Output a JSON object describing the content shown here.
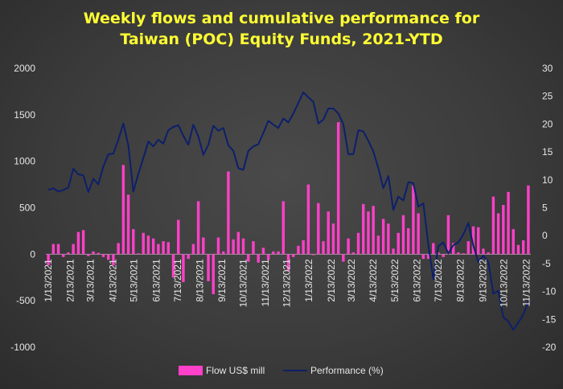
{
  "chart_data": {
    "type": "bar+line",
    "title_line1": "Weekly flows and cumulative performance for",
    "title_line2": "Taiwan (POC) Equity Funds, 2021-YTD",
    "y_left_range": [
      -1000,
      2000
    ],
    "y_left_ticks": [
      "2000",
      "1500",
      "1000",
      "500",
      "0",
      "-500",
      "-1000"
    ],
    "y_right_range": [
      -20,
      30
    ],
    "y_right_ticks": [
      "30",
      "25",
      "20",
      "15",
      "10",
      "5",
      "0",
      "-5",
      "-10",
      "-15",
      "-20"
    ],
    "x_ticks": [
      {
        "label": "1/13/2021",
        "week": 0
      },
      {
        "label": "2/13/2021",
        "week": 4.4
      },
      {
        "label": "3/13/2021",
        "week": 8.4
      },
      {
        "label": "4/13/2021",
        "week": 12.9
      },
      {
        "label": "5/13/2021",
        "week": 17.1
      },
      {
        "label": "6/13/2021",
        "week": 21.6
      },
      {
        "label": "7/13/2021",
        "week": 25.9
      },
      {
        "label": "8/13/2021",
        "week": 30.3
      },
      {
        "label": "9/13/2021",
        "week": 34.7
      },
      {
        "label": "10/13/2021",
        "week": 39
      },
      {
        "label": "11/13/2021",
        "week": 43.4
      },
      {
        "label": "12/13/2021",
        "week": 47.7
      },
      {
        "label": "1/13/2022",
        "week": 52.1
      },
      {
        "label": "2/13/2022",
        "week": 56.6
      },
      {
        "label": "3/13/2022",
        "week": 60.6
      },
      {
        "label": "4/13/2022",
        "week": 65
      },
      {
        "label": "5/13/2022",
        "week": 69.3
      },
      {
        "label": "6/13/2022",
        "week": 73.7
      },
      {
        "label": "7/13/2022",
        "week": 78
      },
      {
        "label": "8/13/2022",
        "week": 82.4
      },
      {
        "label": "9/13/2022",
        "week": 86.9
      },
      {
        "label": "10/13/2022",
        "week": 91.1
      },
      {
        "label": "11/13/2022",
        "week": 95.6
      }
    ],
    "grid": false,
    "legend_position": "bottom",
    "series": [
      {
        "name": "Flow US$ mill",
        "type": "bar",
        "axis": "left",
        "color": "#ff40c8",
        "values": [
          -120,
          110,
          110,
          -30,
          20,
          110,
          240,
          260,
          -20,
          30,
          15,
          -30,
          -60,
          -120,
          120,
          960,
          640,
          270,
          10,
          230,
          200,
          170,
          110,
          140,
          130,
          -250,
          370,
          -300,
          -50,
          110,
          570,
          180,
          -290,
          -430,
          180,
          30,
          890,
          160,
          240,
          170,
          -80,
          140,
          -90,
          70,
          -60,
          30,
          30,
          570,
          -180,
          -30,
          90,
          150,
          750,
          -10,
          550,
          140,
          460,
          330,
          1420,
          -80,
          170,
          20,
          230,
          540,
          460,
          520,
          200,
          380,
          330,
          60,
          230,
          420,
          280,
          740,
          440,
          -50,
          -50,
          120,
          20,
          -30,
          420,
          120,
          20,
          10,
          140,
          300,
          290,
          60,
          20,
          620,
          440,
          530,
          670,
          270,
          100,
          150,
          740
        ]
      },
      {
        "name": "Performance (%)",
        "type": "line",
        "axis": "right",
        "color": "#0d1f6b",
        "values": [
          8.2,
          8.5,
          7.9,
          8.2,
          8.6,
          12,
          11,
          10.8,
          7.8,
          10.2,
          9.2,
          12.4,
          14.6,
          14.7,
          17.2,
          20.1,
          16.2,
          7.9,
          11.1,
          13.9,
          16.9,
          16,
          17.2,
          16.5,
          18.9,
          19.5,
          19.8,
          17.9,
          16.3,
          19.9,
          17.8,
          14.5,
          16.3,
          19.7,
          18.8,
          19.3,
          16.2,
          15.2,
          12.1,
          11.8,
          15.2,
          16,
          16.4,
          18.4,
          20.6,
          19.9,
          19.3,
          21,
          20.3,
          21.9,
          23.8,
          25.7,
          24.8,
          24,
          20.1,
          20.8,
          22.8,
          22.8,
          21.9,
          20,
          14.6,
          14.6,
          18.9,
          18.7,
          17,
          15.1,
          12.1,
          8.5,
          10.7,
          4.6,
          7,
          6.3,
          9.6,
          9.4,
          5.2,
          5.8,
          -1.6,
          -7.8,
          -1.9,
          -1.2,
          -3.2,
          -1.7,
          -1.2,
          0.2,
          2.3,
          -1.8,
          -4.7,
          -3.6,
          -4.7,
          -10.4,
          -9.9,
          -14.6,
          -15.4,
          -16.9,
          -15.6,
          -14.1,
          -11.8
        ]
      }
    ]
  }
}
